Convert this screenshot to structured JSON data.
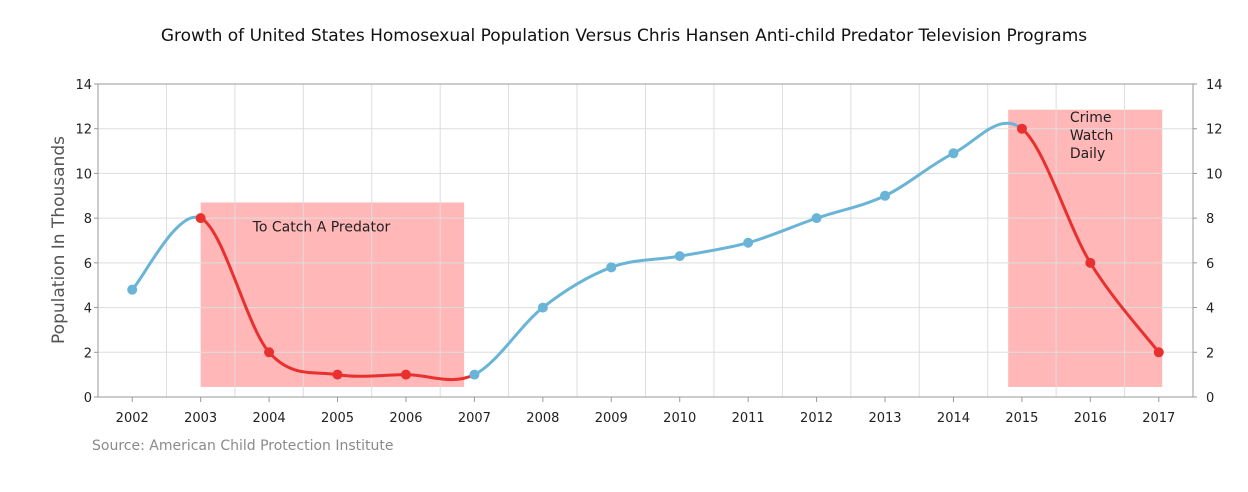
{
  "title": "Growth of United States Homosexual Population Versus Chris Hansen Anti-child Predator Television Programs",
  "source": "Source: American Child Protection Institute",
  "colors": {
    "blue": "#6ab4d8",
    "red": "#e8302f",
    "shade": "#ffb7b8",
    "grid": "#dddddd"
  },
  "chart_data": {
    "type": "line",
    "title": "Growth of United States Homosexual Population Versus Chris Hansen Anti-child Predator Television Programs",
    "xlabel": "",
    "ylabel": "Population In Thousands",
    "x": [
      2002,
      2003,
      2004,
      2005,
      2006,
      2007,
      2008,
      2009,
      2010,
      2011,
      2012,
      2013,
      2014,
      2015,
      2016,
      2017
    ],
    "xlim": [
      2002,
      2017
    ],
    "ylim": [
      0,
      14
    ],
    "yticks": [
      0,
      2,
      4,
      6,
      8,
      10,
      12,
      14
    ],
    "series": [
      {
        "name": "",
        "values": [
          4.8,
          8.0,
          2.0,
          1.0,
          1.0,
          1.0,
          4.0,
          5.8,
          6.3,
          6.9,
          8.0,
          9.0,
          10.9,
          12.0,
          6.0,
          2.0
        ]
      }
    ],
    "highlighted_points": [
      2003,
      2004,
      2005,
      2006,
      2015,
      2016,
      2017
    ],
    "annotations": [
      {
        "text": "To Catch A Predator",
        "x_range": [
          2003,
          2006.85
        ],
        "y_range": [
          0.45,
          8.7
        ]
      },
      {
        "text_lines": [
          "Crime",
          "Watch",
          "Daily"
        ],
        "x_range": [
          2014.8,
          2017.05
        ],
        "y_range": [
          0.45,
          12.85
        ]
      }
    ],
    "grid": true,
    "secondary_y_axis": true
  }
}
